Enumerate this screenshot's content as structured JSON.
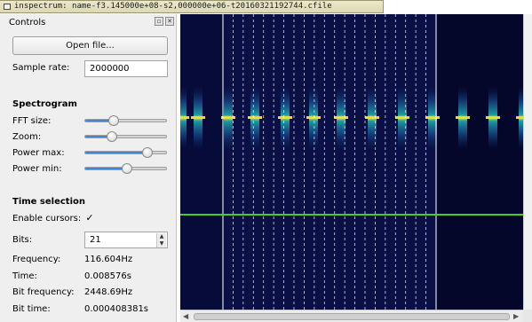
{
  "window": {
    "title": "inspectrum: name-f3.145000e+08-s2,000000e+06-t20160321192744.cfile",
    "icon": "app-icon"
  },
  "controls": {
    "title": "Controls",
    "float_icon": "float-icon",
    "close_icon": "close-icon",
    "open_file_label": "Open file...",
    "sample_rate_label": "Sample rate:",
    "sample_rate_value": "2000000",
    "spectrogram_header": "Spectrogram",
    "fft_size_label": "FFT size:",
    "fft_size_level": 0.36,
    "zoom_label": "Zoom:",
    "zoom_level": 0.33,
    "power_max_label": "Power max:",
    "power_max_level": 0.76,
    "power_min_label": "Power min:",
    "power_min_level": 0.52,
    "time_selection_header": "Time selection",
    "enable_cursors_label": "Enable cursors:",
    "enable_cursors_checked": "✓",
    "bits_label": "Bits:",
    "bits_value": "21",
    "frequency_label": "Frequency:",
    "frequency_value": "116.604Hz",
    "time_label": "Time:",
    "time_value": "0.008576s",
    "bit_frequency_label": "Bit frequency:",
    "bit_frequency_value": "2448.69Hz",
    "bit_time_label": "Bit time:",
    "bit_time_value": "0.000408381s"
  },
  "spectrogram": {
    "cursor_count": 21,
    "accent_color": "#3d86d6",
    "tuner_line_color": "#3cd22a",
    "cursor_color": "#ffffff"
  },
  "scrollbar": {
    "left_arrow": "◀",
    "right_arrow": "▶"
  }
}
